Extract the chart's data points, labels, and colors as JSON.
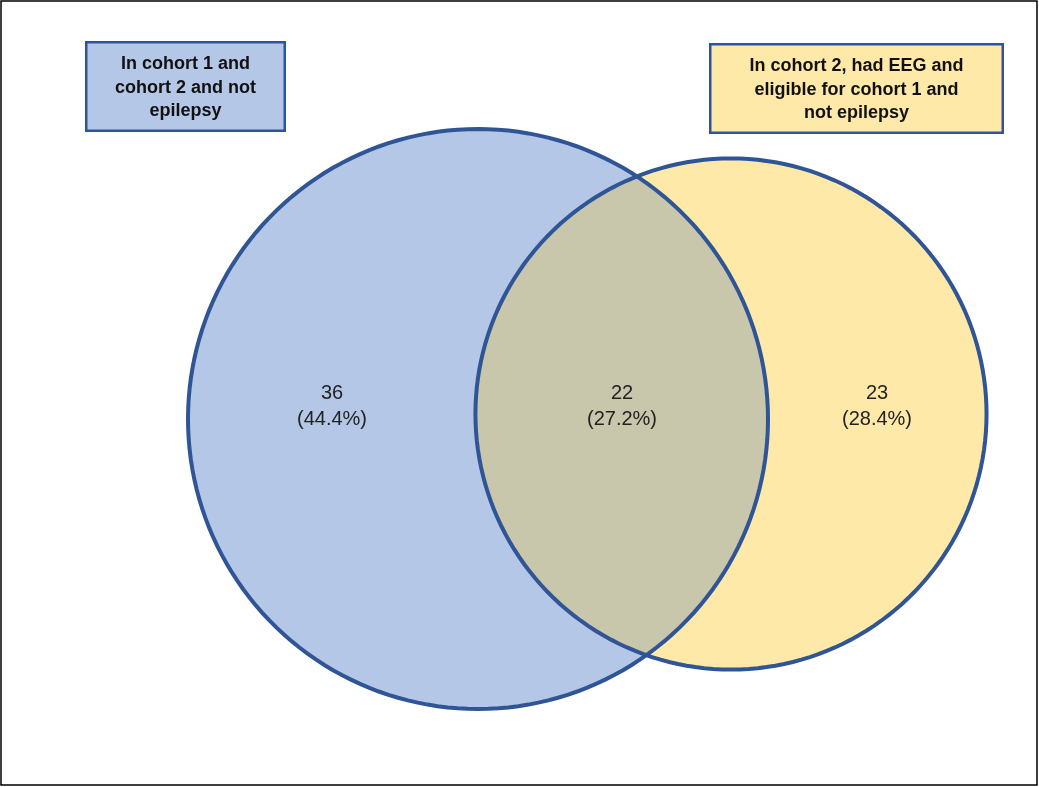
{
  "chart_data": {
    "type": "other",
    "annotations": [
      "In cohort 1 and cohort 2 and not epilepsy",
      "In cohort 2, had EEG and eligible for cohort 1 and not epilepsy"
    ],
    "categories": [
      "36",
      "22",
      "23"
    ],
    "values": [
      44.4,
      27.2,
      28.4
    ],
    "value_labels": [
      "(44.4%)",
      "(27.2%)",
      "(28.4%)"
    ],
    "colors": [
      "#b4c7e7",
      "#c8c6ab",
      "#ffe9a8"
    ]
  }
}
